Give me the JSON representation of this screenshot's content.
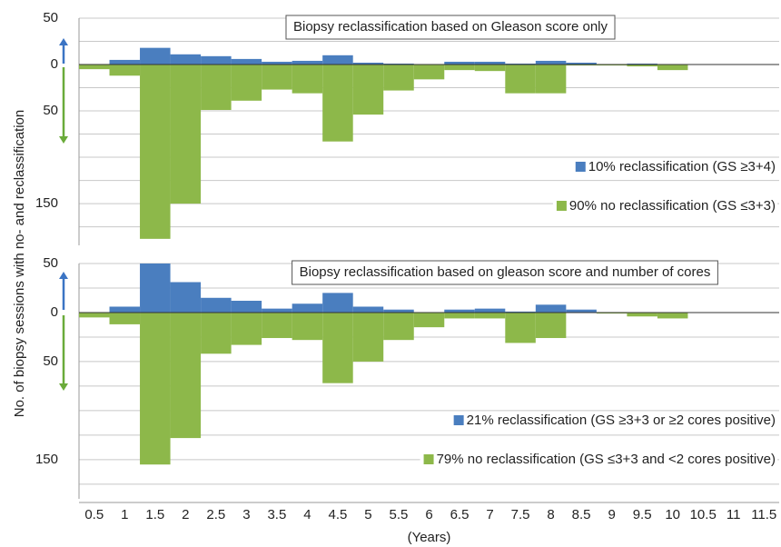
{
  "ylabel": "No. of biopsy sessions with no- and reclassification",
  "chart_data": [
    {
      "type": "bar",
      "title": "Biopsy reclassification based on Gleason score only",
      "series": [
        {
          "name": "10% reclassification (GS ≥3+4)",
          "color": "#4a7ebf",
          "values": [
            0,
            5,
            18,
            11,
            9,
            6,
            3,
            4,
            10,
            2,
            1,
            0,
            3,
            3,
            1,
            4,
            2,
            0,
            1,
            0,
            0,
            0,
            0
          ]
        },
        {
          "name": "90% no reclassification (GS ≤3+3)",
          "color": "#8db84a",
          "values": [
            -5,
            -12,
            -188,
            -150,
            -49,
            -39,
            -27,
            -31,
            -83,
            -54,
            -28,
            -16,
            -6,
            -7,
            -31,
            -31,
            -1,
            -1,
            -2,
            -6,
            0,
            0,
            0
          ]
        }
      ],
      "ylim": [
        -195,
        50
      ],
      "yticks": [
        50,
        {
          "value": 25,
          "label": null
        },
        0,
        {
          "value": -25,
          "label": null
        },
        {
          "value": -50,
          "label": "50"
        },
        {
          "value": -75,
          "label": null
        },
        {
          "value": -100,
          "label": null
        },
        {
          "value": -125,
          "label": null
        },
        {
          "value": -150,
          "label": "150"
        },
        {
          "value": -175,
          "label": null
        }
      ],
      "grid": true,
      "legend": "lower right"
    },
    {
      "type": "bar",
      "title": "Biopsy reclassification based on gleason score and number of cores",
      "xlabel": "(Years)",
      "categories": [
        "0.5",
        "1",
        "1.5",
        "2",
        "2.5",
        "3",
        "3.5",
        "4",
        "4.5",
        "5",
        "5.5",
        "6",
        "6.5",
        "7",
        "7.5",
        "8",
        "8.5",
        "9",
        "9.5",
        "10",
        "10.5",
        "11",
        "11.5"
      ],
      "series": [
        {
          "name": "21% reclassification (GS ≥3+3 or ≥2 cores positive)",
          "color": "#4a7ebf",
          "values": [
            0,
            6,
            50,
            31,
            15,
            12,
            4,
            9,
            20,
            6,
            3,
            0,
            3,
            4,
            1,
            8,
            3,
            0,
            0,
            0,
            0,
            0,
            0
          ]
        },
        {
          "name": "79% no reclassification (GS ≤3+3 and <2 cores positive)",
          "color": "#8db84a",
          "values": [
            -5,
            -12,
            -155,
            -128,
            -42,
            -33,
            -26,
            -28,
            -72,
            -50,
            -28,
            -15,
            -6,
            -6,
            -31,
            -26,
            0,
            -1,
            -4,
            -6,
            0,
            0,
            0
          ]
        }
      ],
      "ylim": [
        -190,
        50
      ],
      "yticks": [
        50,
        {
          "value": 25,
          "label": null
        },
        0,
        {
          "value": -25,
          "label": null
        },
        {
          "value": -50,
          "label": "50"
        },
        {
          "value": -75,
          "label": null
        },
        {
          "value": -100,
          "label": null
        },
        {
          "value": -125,
          "label": null
        },
        {
          "value": -150,
          "label": "150"
        },
        {
          "value": -175,
          "label": null
        }
      ],
      "grid": true,
      "legend": "lower right"
    }
  ]
}
